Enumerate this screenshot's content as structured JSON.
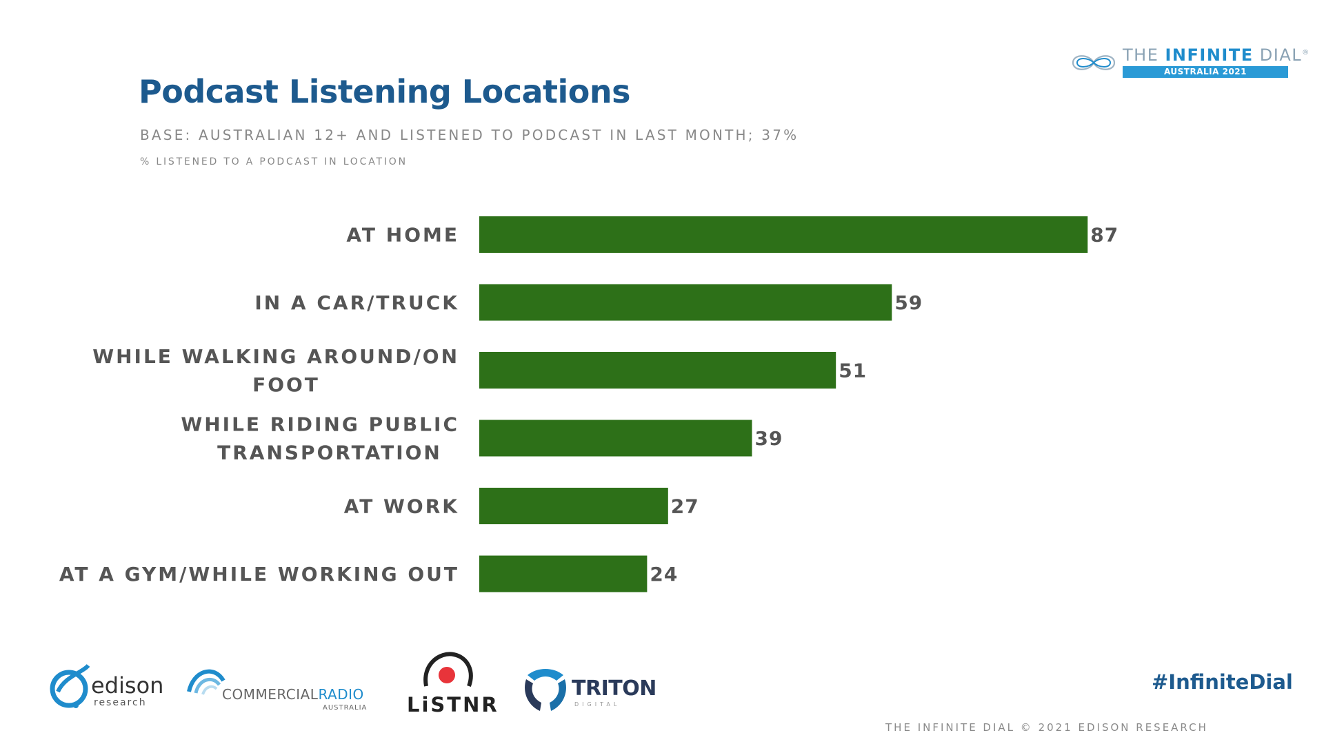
{
  "header": {
    "title": "Podcast Listening Locations",
    "subtitle": "BASE: AUSTRALIAN 12+ AND LISTENED TO PODCAST IN LAST MONTH; 37%",
    "measure": "% LISTENED TO A PODCAST IN LOCATION"
  },
  "brand": {
    "logo_word_light": "THE ",
    "logo_word_bold": "INFINITE",
    "logo_word_end": " DIAL",
    "logo_reg": "®",
    "logo_sub": "AUSTRALIA 2021",
    "hashtag": "#InfiniteDial",
    "footer": "THE INFINITE DIAL  © 2021 EDISON RESEARCH"
  },
  "partners": {
    "edison": "edison",
    "edison_sub": "research",
    "cra_a": "COMMERCIAL",
    "cra_b": "RADIO",
    "cra_sub": "AUSTRALIA",
    "listnr": "LiSTNR",
    "triton": "TRITON",
    "triton_sub": "DIGITAL"
  },
  "colors": {
    "bar": "#2d7018",
    "title": "#1d5a8e",
    "label": "#555555"
  },
  "chart_data": {
    "type": "bar",
    "orientation": "horizontal",
    "title": "Podcast Listening Locations",
    "xlabel": "% LISTENED TO A PODCAST IN LOCATION",
    "ylabel": "",
    "categories": [
      [
        "AT HOME"
      ],
      [
        "IN A CAR/TRUCK"
      ],
      [
        "WHILE WALKING AROUND/ON",
        "FOOT"
      ],
      [
        "WHILE RIDING PUBLIC",
        "TRANSPORTATION"
      ],
      [
        "AT WORK"
      ],
      [
        "AT A GYM/WHILE WORKING OUT"
      ]
    ],
    "values": [
      87,
      59,
      51,
      39,
      27,
      24
    ],
    "xlim": [
      0,
      100
    ],
    "grid": false,
    "legend": "none"
  }
}
